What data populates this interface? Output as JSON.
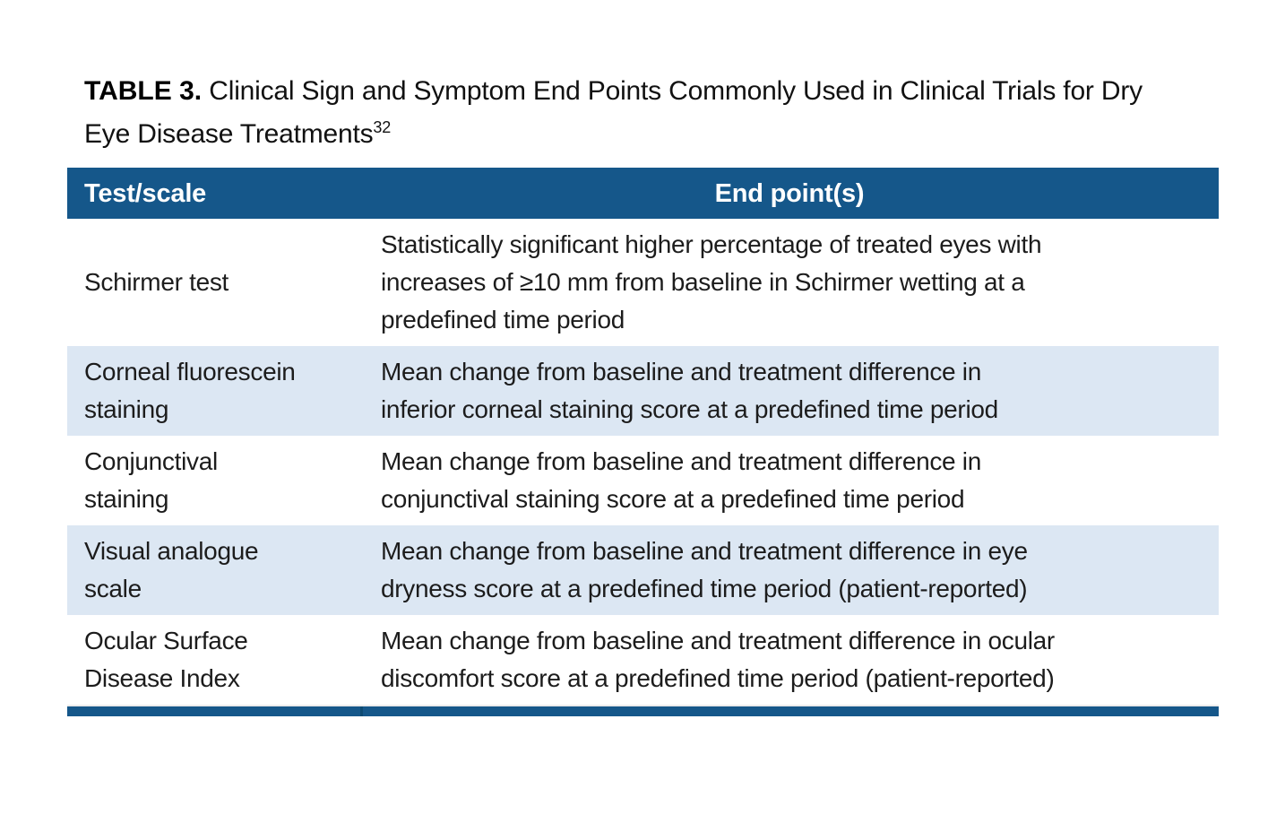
{
  "title": {
    "label": "TABLE 3.",
    "text": " Clinical Sign and Symptom End Points Commonly Used in Clinical Trials for Dry Eye Disease Treatments",
    "citation_superscript": "32"
  },
  "colors": {
    "header_bg": "#15578a",
    "header_text": "#ffffff",
    "alt_row_bg": "#dce7f3",
    "body_text": "#1c1c1c",
    "bottom_bar_bg": "#15578a",
    "bottom_bar_divider": "#0d4a73"
  },
  "table": {
    "columns": [
      {
        "label": "Test/scale"
      },
      {
        "label": "End point(s)"
      }
    ],
    "rows": [
      {
        "test_scale": "Schirmer test",
        "end_points": "Statistically significant higher percentage of treated eyes with\nincreases of ≥10 mm from baseline in Schirmer wetting at a\npredefined time period"
      },
      {
        "test_scale": "Corneal fluorescein\nstaining",
        "end_points": "Mean change from baseline and treatment difference in\ninferior corneal staining score at a predefined time period"
      },
      {
        "test_scale": "Conjunctival\nstaining",
        "end_points": "Mean change from baseline and treatment difference in\nconjunctival staining score at a predefined time period"
      },
      {
        "test_scale": "Visual analogue\nscale",
        "end_points": "Mean change from baseline and treatment difference in eye\ndryness score at a predefined time period (patient-reported)"
      },
      {
        "test_scale": "Ocular Surface\nDisease Index",
        "end_points": "Mean change from baseline and treatment difference in ocular\ndiscomfort score at a predefined time period (patient-reported)"
      }
    ]
  }
}
